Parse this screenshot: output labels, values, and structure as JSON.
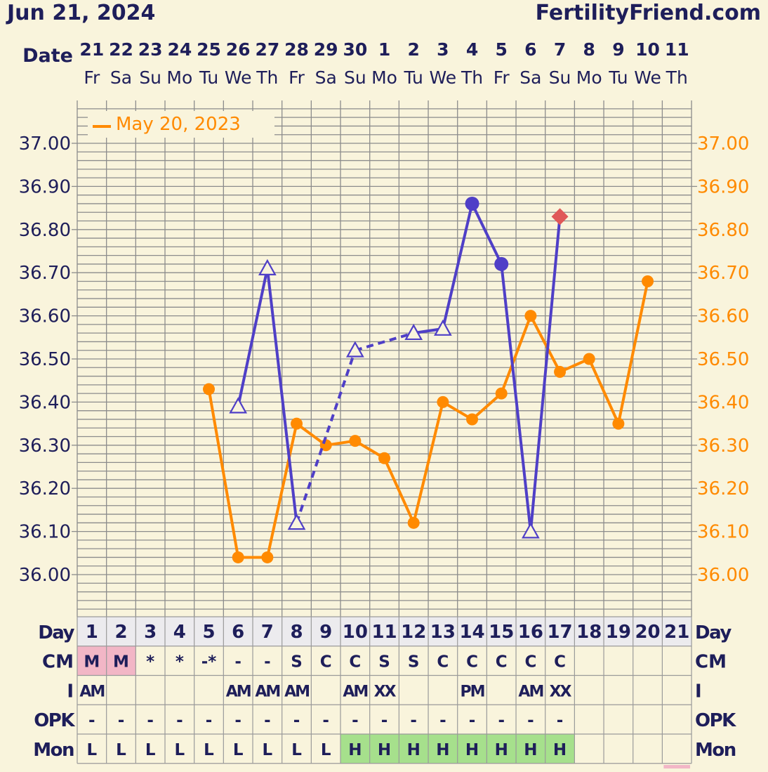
{
  "header": {
    "chart_date": "Jun 21, 2024",
    "site": "FertilityFriend.com",
    "date_label": "Date"
  },
  "calendar": {
    "dates": [
      "21",
      "22",
      "23",
      "24",
      "25",
      "26",
      "27",
      "28",
      "29",
      "30",
      "1",
      "2",
      "3",
      "4",
      "5",
      "6",
      "7",
      "8",
      "9",
      "10",
      "11"
    ],
    "weekdays": [
      "Fr",
      "Sa",
      "Su",
      "Mo",
      "Tu",
      "We",
      "Th",
      "Fr",
      "Sa",
      "Su",
      "Mo",
      "Tu",
      "We",
      "Th",
      "Fr",
      "Sa",
      "Su",
      "Mo",
      "Tu",
      "We",
      "Th"
    ]
  },
  "chart_data": {
    "type": "line",
    "ylim": [
      35.93,
      37.11
    ],
    "y_ticks": [
      "36.00",
      "36.10",
      "36.20",
      "36.30",
      "36.40",
      "36.50",
      "36.60",
      "36.70",
      "36.80",
      "36.90",
      "37.00"
    ],
    "legend_placement": "top-left",
    "grid": true,
    "series": [
      {
        "name": "",
        "color": "#4f3fc7",
        "points": [
          {
            "day": 6,
            "temp": 36.39,
            "marker": "open-triangle"
          },
          {
            "day": 7,
            "temp": 36.71,
            "marker": "open-triangle"
          },
          {
            "day": 8,
            "temp": 36.12,
            "marker": "open-triangle"
          },
          {
            "day": 10,
            "temp": 36.52,
            "marker": "open-triangle"
          },
          {
            "day": 12,
            "temp": 36.56,
            "marker": "open-triangle"
          },
          {
            "day": 13,
            "temp": 36.57,
            "marker": "open-triangle"
          },
          {
            "day": 14,
            "temp": 36.86,
            "marker": "filled-circle"
          },
          {
            "day": 15,
            "temp": 36.72,
            "marker": "filled-circle"
          },
          {
            "day": 16,
            "temp": 36.1,
            "marker": "open-triangle"
          },
          {
            "day": 17,
            "temp": 36.83,
            "marker": "red-diamond"
          }
        ],
        "dashed_segments": [
          [
            8,
            10
          ],
          [
            10,
            12
          ]
        ]
      },
      {
        "name": "May 20, 2023",
        "color": "#ff8a00",
        "points": [
          {
            "day": 5,
            "temp": 36.43
          },
          {
            "day": 6,
            "temp": 36.04
          },
          {
            "day": 7,
            "temp": 36.04
          },
          {
            "day": 8,
            "temp": 36.35
          },
          {
            "day": 9,
            "temp": 36.3
          },
          {
            "day": 10,
            "temp": 36.31
          },
          {
            "day": 11,
            "temp": 36.27
          },
          {
            "day": 12,
            "temp": 36.12
          },
          {
            "day": 13,
            "temp": 36.4
          },
          {
            "day": 14,
            "temp": 36.36
          },
          {
            "day": 15,
            "temp": 36.42
          },
          {
            "day": 16,
            "temp": 36.6
          },
          {
            "day": 17,
            "temp": 36.47
          },
          {
            "day": 18,
            "temp": 36.5
          },
          {
            "day": 19,
            "temp": 36.35
          },
          {
            "day": 20,
            "temp": 36.68
          }
        ]
      }
    ]
  },
  "table": {
    "day_label": "Day",
    "days": [
      "1",
      "2",
      "3",
      "4",
      "5",
      "6",
      "7",
      "8",
      "9",
      "10",
      "11",
      "12",
      "13",
      "14",
      "15",
      "16",
      "17",
      "18",
      "19",
      "20",
      "21"
    ],
    "rows": [
      {
        "label": "CM",
        "cells": [
          "M",
          "M",
          "*",
          "*",
          "-*",
          "-",
          "-",
          "S",
          "C",
          "C",
          "S",
          "S",
          "C",
          "C",
          "C",
          "C",
          "C",
          "",
          "",
          "",
          ""
        ],
        "hl": [
          "pink",
          "pink",
          "",
          "",
          "",
          "",
          "",
          "",
          "",
          "",
          "",
          "",
          "",
          "",
          "",
          "",
          "",
          "",
          "",
          "",
          ""
        ]
      },
      {
        "label": "I",
        "cells": [
          "AM",
          "",
          "",
          "",
          "",
          "AM",
          "AM",
          "AM",
          "",
          "AM",
          "XX",
          "",
          "",
          "PM",
          "",
          "AM",
          "XX",
          "",
          "",
          "",
          ""
        ],
        "hl": [
          "",
          "",
          "",
          "",
          "",
          "",
          "",
          "",
          "",
          "",
          "",
          "",
          "",
          "",
          "",
          "",
          "",
          "",
          "",
          "",
          ""
        ]
      },
      {
        "label": "OPK",
        "cells": [
          "-",
          "-",
          "-",
          "-",
          "-",
          "-",
          "-",
          "-",
          "-",
          "-",
          "-",
          "-",
          "-",
          "-",
          "-",
          "-",
          "-",
          "",
          "",
          "",
          ""
        ],
        "hl": [
          "",
          "",
          "",
          "",
          "",
          "",
          "",
          "",
          "",
          "",
          "",
          "",
          "",
          "",
          "",
          "",
          "",
          "",
          "",
          "",
          ""
        ]
      },
      {
        "label": "Mon",
        "cells": [
          "L",
          "L",
          "L",
          "L",
          "L",
          "L",
          "L",
          "L",
          "L",
          "H",
          "H",
          "H",
          "H",
          "H",
          "H",
          "H",
          "H",
          "",
          "",
          "",
          ""
        ],
        "hl": [
          "",
          "",
          "",
          "",
          "",
          "",
          "",
          "",
          "",
          "green",
          "green",
          "green",
          "green",
          "green",
          "green",
          "green",
          "green",
          "",
          "",
          "",
          ""
        ]
      }
    ]
  },
  "colors": {
    "navy": "#1e1e5a",
    "purple": "#4f3fc7",
    "orange": "#ff8a00",
    "red_marker": "#e05858",
    "pink_cell": "#f2b6c6",
    "green_cell": "#a6e08c",
    "background": "#f9f4dc"
  }
}
